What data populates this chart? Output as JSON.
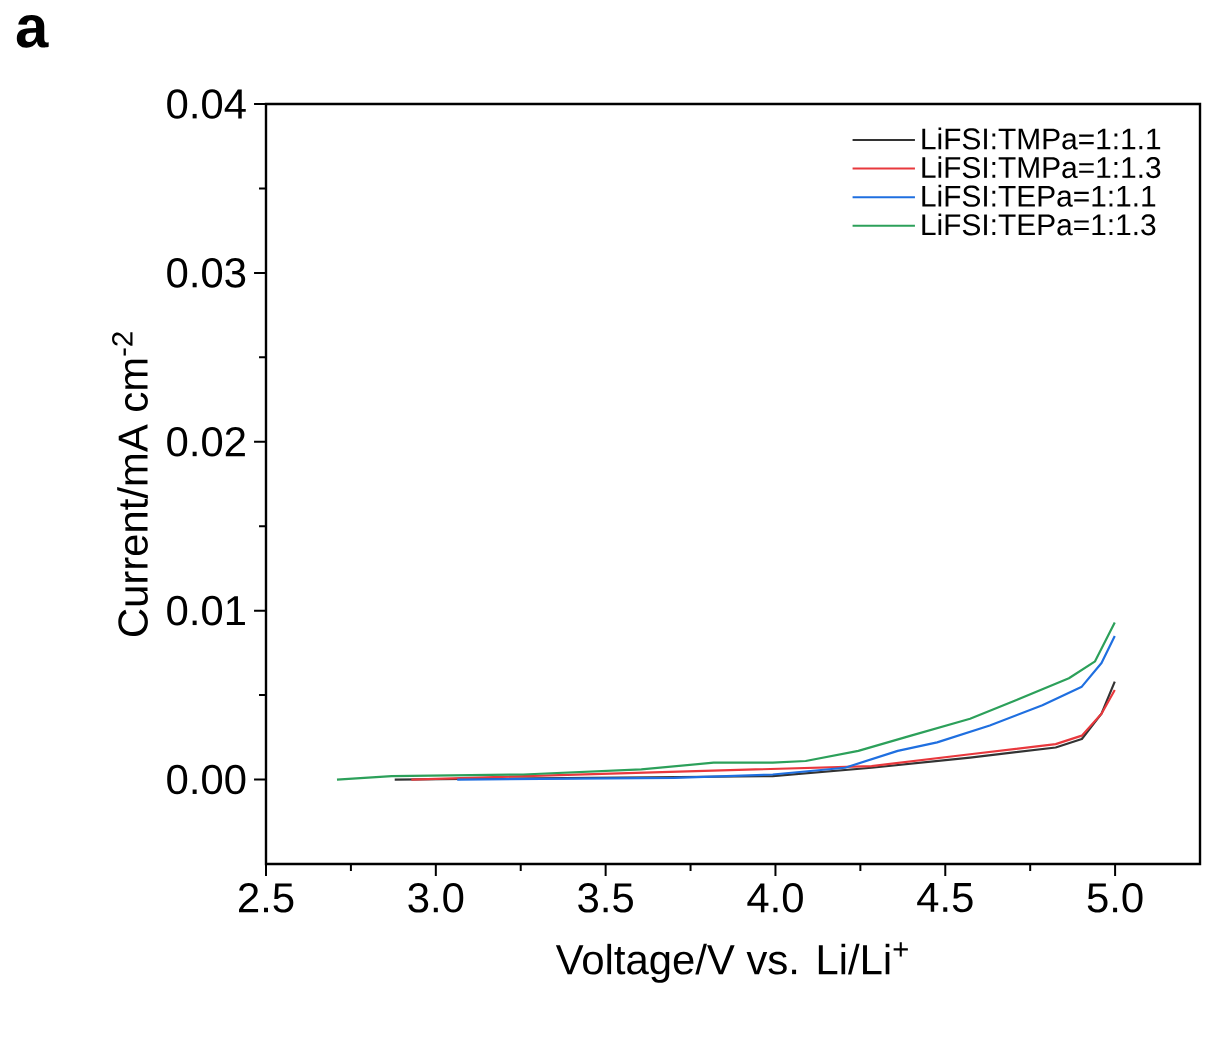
{
  "chart_data": {
    "type": "line",
    "xlabel": "Voltage/V vs. Li/Li$^{+}$",
    "ylabel": "Current/mA cm$^{-2}$",
    "annotations": [
      "a"
    ],
    "xlim": [
      2.5,
      5.25
    ],
    "ylim": [
      -0.005,
      0.04
    ],
    "xticks": [
      2.5,
      {
        "value": 3,
        "label": "3.0"
      },
      3.5,
      {
        "value": 4,
        "label": "4.0"
      },
      4.5,
      {
        "value": 5,
        "label": "5.0"
      }
    ],
    "yticks": [
      {
        "value": 0,
        "label": "0.00"
      },
      0.01,
      0.02,
      0.03,
      0.04
    ],
    "legend": "top right",
    "grid": false,
    "marker": "none",
    "line_style": "solid",
    "series": [
      {
        "name": "LiFSI:TMPa=1:1.1",
        "color": "#333333",
        "x": [
          2.879,
          3.992,
          4.283,
          4.573,
          4.825,
          4.902,
          4.96,
          4.999
        ],
        "values": [
          0.0,
          0.0002,
          0.0007,
          0.0013,
          0.0019,
          0.0024,
          0.0039,
          0.0058
        ]
      },
      {
        "name": "LiFSI:TMPa=1:1.3",
        "color": "#e8383d",
        "x": [
          2.928,
          3.992,
          4.283,
          4.573,
          4.825,
          4.902,
          4.96,
          4.999
        ],
        "values": [
          0.0,
          null,
          0.0008,
          0.0015,
          0.0021,
          0.0026,
          0.0039,
          0.0053
        ]
      },
      {
        "name": "LiFSI:TEPa=1:1.1",
        "color": "#1f6fe0",
        "x": [
          3.063,
          3.702,
          3.992,
          4.205,
          4.36,
          4.476,
          4.631,
          4.786,
          4.902,
          4.96,
          4.999
        ],
        "values": [
          0.0,
          0.0001,
          0.0003,
          0.0007,
          0.0017,
          0.0022,
          0.0032,
          0.0044,
          0.0055,
          0.0069,
          0.0085
        ]
      },
      {
        "name": "LiFSI:TEPa=1:1.3",
        "color": "#2ca05a",
        "x": [
          2.709,
          2.87,
          3.257,
          3.605,
          3.818,
          3.992,
          4.089,
          4.244,
          4.399,
          4.573,
          4.708,
          4.864,
          4.941,
          4.999
        ],
        "values": [
          0.0,
          0.0002,
          0.0003,
          0.0006,
          0.001,
          0.001,
          0.0011,
          0.0017,
          0.0026,
          0.0036,
          0.0047,
          0.006,
          0.007,
          0.0093
        ]
      }
    ]
  }
}
